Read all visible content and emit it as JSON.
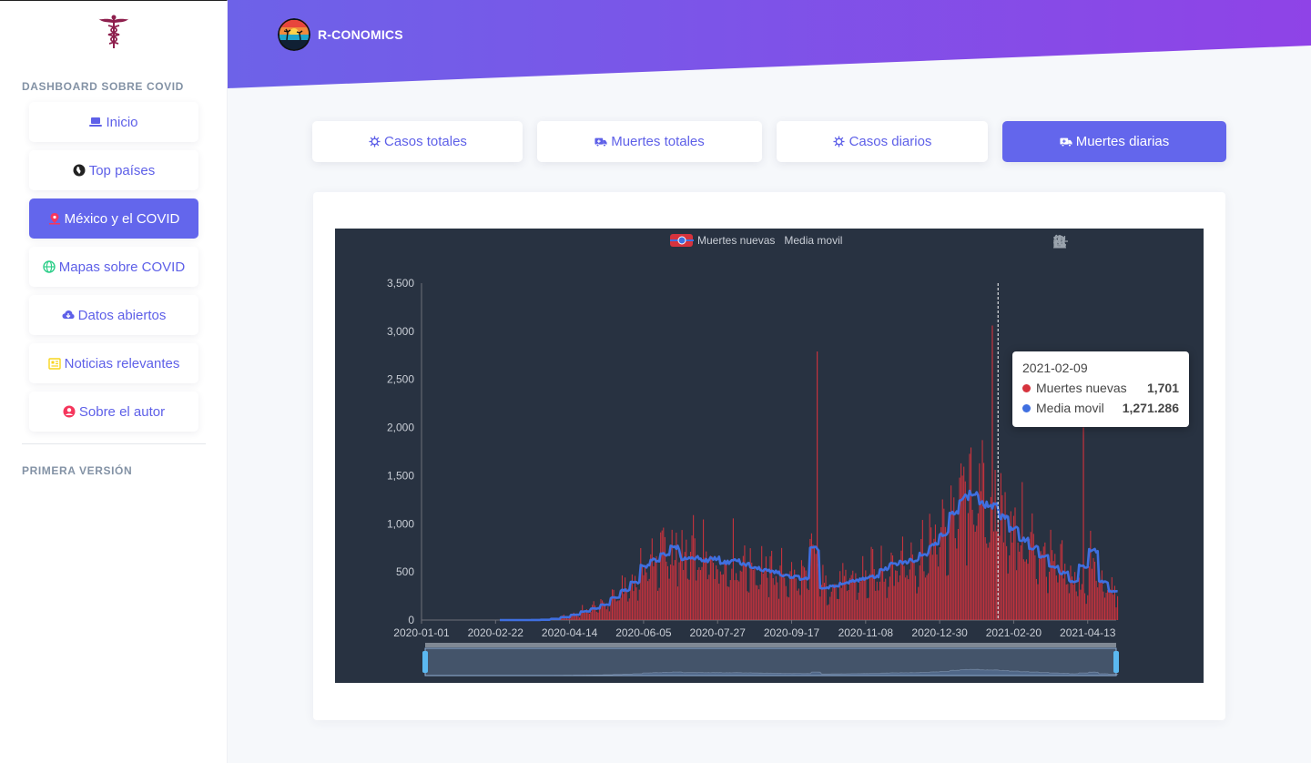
{
  "sidebar": {
    "section_title": "DASHBOARD SOBRE COVID",
    "footer_title": "PRIMERA VERSIÓN",
    "items": [
      {
        "label": "Inicio",
        "icon": "laptop-icon"
      },
      {
        "label": "Top países",
        "icon": "globe-africa-icon"
      },
      {
        "label": "México y el COVID",
        "icon": "map-pin-icon",
        "active": true
      },
      {
        "label": "Mapas sobre COVID",
        "icon": "globe-icon"
      },
      {
        "label": "Datos abiertos",
        "icon": "cloud-download-icon"
      },
      {
        "label": "Noticias relevantes",
        "icon": "newspaper-icon"
      },
      {
        "label": "Sobre el autor",
        "icon": "user-circle-icon"
      }
    ]
  },
  "header": {
    "brand": "R-CONOMICS"
  },
  "tabs": [
    {
      "label": "Casos totales",
      "icon": "virus-icon"
    },
    {
      "label": "Muertes totales",
      "icon": "ambulance-icon"
    },
    {
      "label": "Casos diarios",
      "icon": "virus-icon"
    },
    {
      "label": "Muertes diarias",
      "icon": "ambulance-icon",
      "active": true
    }
  ],
  "colors": {
    "primary": "#6366ec",
    "bars": "#d6333d",
    "line": "#3f6fe0",
    "chart_bg": "#283241"
  },
  "chart_data": {
    "type": "bar",
    "title": "",
    "xlabel": "",
    "ylabel": "",
    "ylim": [
      0,
      3500
    ],
    "yticks": [
      "0",
      "500",
      "1,000",
      "1,500",
      "2,000",
      "2,500",
      "3,000",
      "3,500"
    ],
    "x_tick_labels": [
      "2020-01-01",
      "2020-02-22",
      "2020-04-14",
      "2020-06-05",
      "2020-07-27",
      "2020-09-17",
      "2020-11-08",
      "2020-12-30",
      "2021-02-20",
      "2021-04-13"
    ],
    "date_range": [
      "2020-01-01",
      "2021-05-03"
    ],
    "series": [
      {
        "name": "Muertes nuevas",
        "type": "bar"
      },
      {
        "name": "Media movil",
        "type": "line"
      }
    ],
    "weekly": [
      {
        "week_start": "2020-03-18",
        "deaths": 1,
        "avg": 1
      },
      {
        "week_start": "2020-03-25",
        "deaths": 4,
        "avg": 3
      },
      {
        "week_start": "2020-04-01",
        "deaths": 15,
        "avg": 12
      },
      {
        "week_start": "2020-04-08",
        "deaths": 35,
        "avg": 30
      },
      {
        "week_start": "2020-04-15",
        "deaths": 60,
        "avg": 55
      },
      {
        "week_start": "2020-04-22",
        "deaths": 95,
        "avg": 90
      },
      {
        "week_start": "2020-04-29",
        "deaths": 130,
        "avg": 120
      },
      {
        "week_start": "2020-05-06",
        "deaths": 170,
        "avg": 160
      },
      {
        "week_start": "2020-05-13",
        "deaths": 240,
        "avg": 230
      },
      {
        "week_start": "2020-05-20",
        "deaths": 330,
        "avg": 310
      },
      {
        "week_start": "2020-05-27",
        "deaths": 400,
        "avg": 390
      },
      {
        "week_start": "2020-06-03",
        "deaths": 560,
        "avg": 560
      },
      {
        "week_start": "2020-06-10",
        "deaths": 640,
        "avg": 620
      },
      {
        "week_start": "2020-06-17",
        "deaths": 700,
        "avg": 690
      },
      {
        "week_start": "2020-06-24",
        "deaths": 720,
        "avg": 750
      },
      {
        "week_start": "2020-07-01",
        "deaths": 640,
        "avg": 640
      },
      {
        "week_start": "2020-07-08",
        "deaths": 660,
        "avg": 650
      },
      {
        "week_start": "2020-07-15",
        "deaths": 620,
        "avg": 620
      },
      {
        "week_start": "2020-07-22",
        "deaths": 640,
        "avg": 640
      },
      {
        "week_start": "2020-07-29",
        "deaths": 620,
        "avg": 600
      },
      {
        "week_start": "2020-08-05",
        "deaths": 640,
        "avg": 620
      },
      {
        "week_start": "2020-08-12",
        "deaths": 600,
        "avg": 580
      },
      {
        "week_start": "2020-08-19",
        "deaths": 560,
        "avg": 540
      },
      {
        "week_start": "2020-08-26",
        "deaths": 520,
        "avg": 520
      },
      {
        "week_start": "2020-09-02",
        "deaths": 500,
        "avg": 500
      },
      {
        "week_start": "2020-09-09",
        "deaths": 460,
        "avg": 460
      },
      {
        "week_start": "2020-09-16",
        "deaths": 440,
        "avg": 450
      },
      {
        "week_start": "2020-09-23",
        "deaths": 420,
        "avg": 430
      },
      {
        "week_start": "2020-09-30",
        "deaths": 700,
        "avg": 740
      },
      {
        "week_start": "2020-10-07",
        "deaths": 360,
        "avg": 330
      },
      {
        "week_start": "2020-10-14",
        "deaths": 370,
        "avg": 350
      },
      {
        "week_start": "2020-10-21",
        "deaths": 390,
        "avg": 380
      },
      {
        "week_start": "2020-10-28",
        "deaths": 420,
        "avg": 410
      },
      {
        "week_start": "2020-11-04",
        "deaths": 440,
        "avg": 430
      },
      {
        "week_start": "2020-11-11",
        "deaths": 460,
        "avg": 450
      },
      {
        "week_start": "2020-11-18",
        "deaths": 540,
        "avg": 530
      },
      {
        "week_start": "2020-11-25",
        "deaths": 590,
        "avg": 580
      },
      {
        "week_start": "2020-12-02",
        "deaths": 620,
        "avg": 600
      },
      {
        "week_start": "2020-12-09",
        "deaths": 650,
        "avg": 620
      },
      {
        "week_start": "2020-12-16",
        "deaths": 700,
        "avg": 690
      },
      {
        "week_start": "2020-12-23",
        "deaths": 820,
        "avg": 790
      },
      {
        "week_start": "2020-12-30",
        "deaths": 920,
        "avg": 900
      },
      {
        "week_start": "2021-01-06",
        "deaths": 1120,
        "avg": 1100
      },
      {
        "week_start": "2021-01-13",
        "deaths": 1300,
        "avg": 1280
      },
      {
        "week_start": "2021-01-20",
        "deaths": 1330,
        "avg": 1310
      },
      {
        "week_start": "2021-01-27",
        "deaths": 1250,
        "avg": 1200
      },
      {
        "week_start": "2021-02-03",
        "deaths": 1200,
        "avg": 1180
      },
      {
        "week_start": "2021-02-10",
        "deaths": 1100,
        "avg": 1080
      },
      {
        "week_start": "2021-02-17",
        "deaths": 960,
        "avg": 940
      },
      {
        "week_start": "2021-02-24",
        "deaths": 860,
        "avg": 840
      },
      {
        "week_start": "2021-03-03",
        "deaths": 760,
        "avg": 750
      },
      {
        "week_start": "2021-03-10",
        "deaths": 680,
        "avg": 660
      },
      {
        "week_start": "2021-03-17",
        "deaths": 560,
        "avg": 550
      },
      {
        "week_start": "2021-03-24",
        "deaths": 500,
        "avg": 490
      },
      {
        "week_start": "2021-03-31",
        "deaths": 420,
        "avg": 400
      },
      {
        "week_start": "2021-04-07",
        "deaths": 360,
        "avg": 560
      },
      {
        "week_start": "2021-04-14",
        "deaths": 560,
        "avg": 720
      },
      {
        "week_start": "2021-04-21",
        "deaths": 360,
        "avg": 400
      },
      {
        "week_start": "2021-04-28",
        "deaths": 300,
        "avg": 300
      }
    ],
    "spikes": [
      {
        "date": "2020-10-05",
        "value": 2790
      },
      {
        "date": "2021-02-05",
        "value": 3060
      },
      {
        "date": "2021-04-10",
        "value": 2000
      }
    ],
    "tooltip": {
      "date": "2021-02-09",
      "rows": [
        {
          "name": "Muertes nuevas",
          "value": "1,701"
        },
        {
          "name": "Media movil",
          "value": "1,271.286"
        }
      ]
    }
  }
}
